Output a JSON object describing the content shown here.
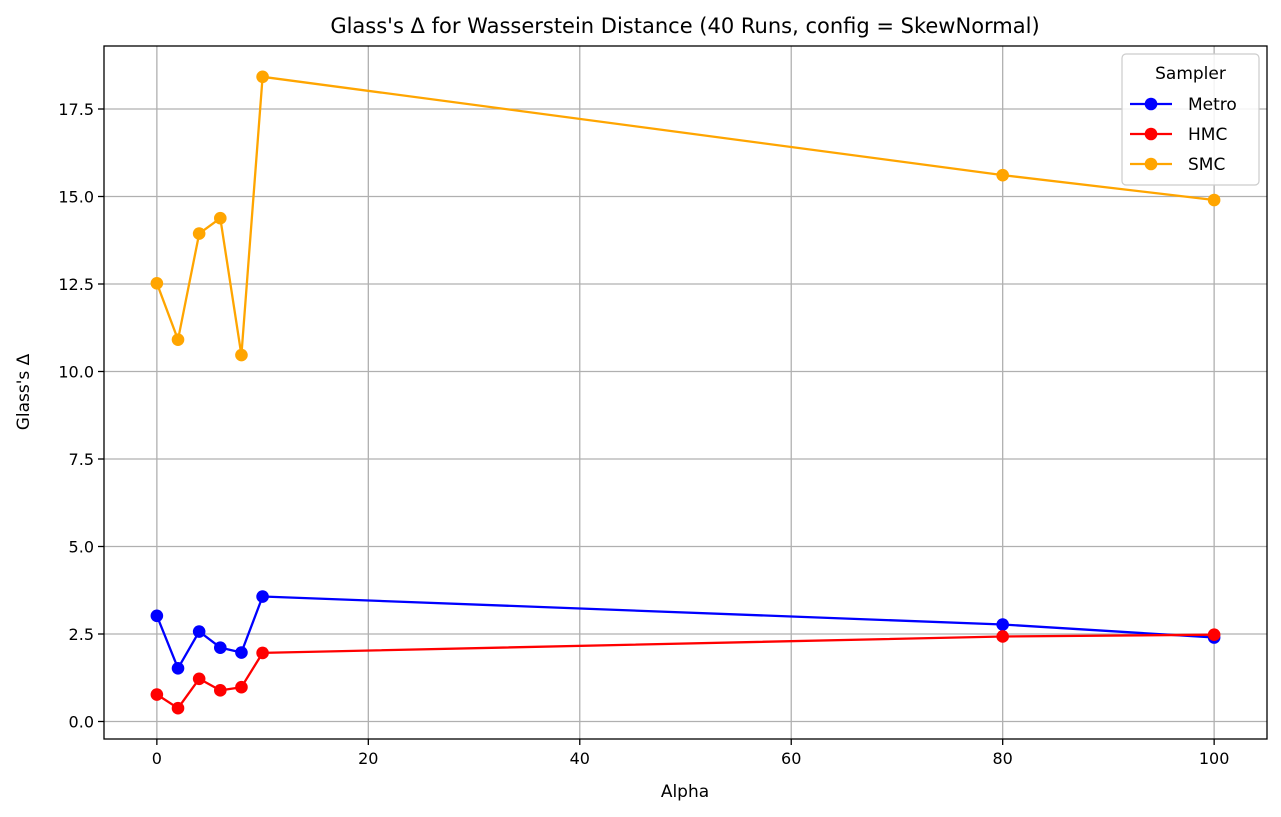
{
  "chart_data": {
    "type": "line",
    "title": "Glass's Δ for Wasserstein Distance (40 Runs, config = SkewNormal)",
    "xlabel": "Alpha",
    "ylabel": "Glass's Δ",
    "xlim": [
      -5,
      105
    ],
    "ylim": [
      -0.5,
      19.3
    ],
    "xticks": [
      0,
      20,
      40,
      60,
      80,
      100
    ],
    "xtick_labels": [
      "0",
      "20",
      "40",
      "60",
      "80",
      "100"
    ],
    "yticks": [
      0,
      2.5,
      5,
      7.5,
      10,
      12.5,
      15,
      17.5
    ],
    "ytick_labels": [
      "0.0",
      "2.5",
      "5.0",
      "7.5",
      "10.0",
      "12.5",
      "15.0",
      "17.5"
    ],
    "grid": true,
    "legend": {
      "title": "Sampler",
      "position": "top-right"
    },
    "x": [
      0,
      2,
      4,
      6,
      8,
      10,
      80,
      100
    ],
    "series": [
      {
        "name": "Metro",
        "color": "#0000ff",
        "values": [
          3.02,
          1.52,
          2.57,
          2.11,
          1.97,
          3.57,
          2.77,
          2.4
        ]
      },
      {
        "name": "HMC",
        "color": "#ff0000",
        "values": [
          0.77,
          0.38,
          1.22,
          0.89,
          0.98,
          1.96,
          2.43,
          2.48
        ]
      },
      {
        "name": "SMC",
        "color": "#ffa500",
        "values": [
          12.52,
          10.91,
          13.94,
          14.38,
          10.47,
          18.42,
          15.61,
          14.9
        ]
      }
    ]
  }
}
